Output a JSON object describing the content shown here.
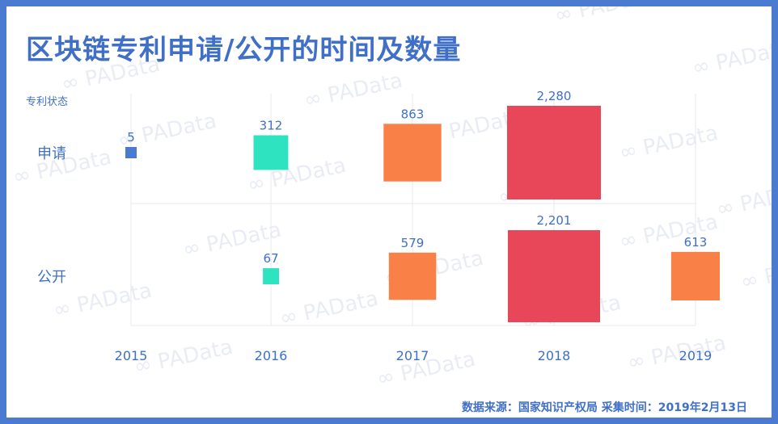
{
  "title": "区块链专利申请/公开的时间及数量",
  "watermark_text": "PAData",
  "source_text": "数据来源：国家知识产权局   采集时间：2019年2月13日",
  "colors": {
    "frame": "#4a7bd0",
    "title": "#3f6fc7",
    "axis_text": "#3f6fc7",
    "grid": "#e4e8ee",
    "watermark": "#e9edf3",
    "level_lowest": "#4a7bd0",
    "level_low": "#2de3c0",
    "level_mid": "#f98147",
    "level_high": "#e8475a"
  },
  "chart_data": {
    "type": "square-bubble",
    "title": "区块链专利申请/公开的时间及数量",
    "ylabel": "专利状态",
    "xlabel": "",
    "x": [
      "2015",
      "2016",
      "2017",
      "2018",
      "2019"
    ],
    "rows": [
      "申请",
      "公开"
    ],
    "series": [
      {
        "name": "申请",
        "values": [
          5,
          312,
          863,
          2280,
          null
        ],
        "labels": [
          "5",
          "312",
          "863",
          "2,280",
          ""
        ],
        "levels": [
          "level_lowest",
          "level_low",
          "level_mid",
          "level_high",
          ""
        ]
      },
      {
        "name": "公开",
        "values": [
          null,
          67,
          579,
          2201,
          613
        ],
        "labels": [
          "",
          "67",
          "579",
          "2,201",
          "613"
        ],
        "levels": [
          "",
          "level_low",
          "level_mid",
          "level_high",
          "level_mid"
        ]
      }
    ],
    "max_value": 2280
  }
}
